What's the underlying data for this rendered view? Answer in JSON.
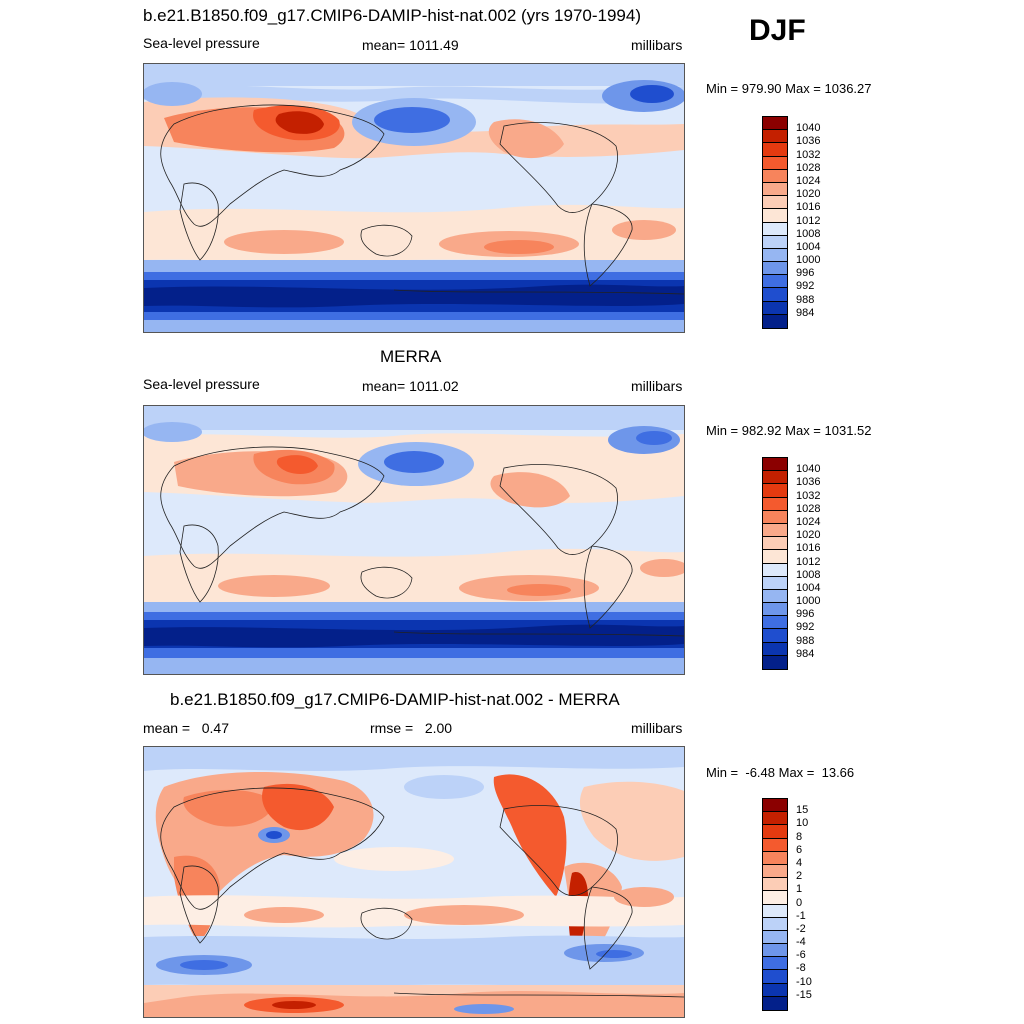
{
  "season": "DJF",
  "colors": {
    "slp": [
      "#8b0000",
      "#c42000",
      "#e43a10",
      "#f45a2e",
      "#f7845c",
      "#f9a98a",
      "#fccdb6",
      "#fde6d6",
      "#dde9fb",
      "#bcd2f8",
      "#96b6f2",
      "#6e96ea",
      "#3f6ee2",
      "#1f4ecf",
      "#0b35b0",
      "#03208a"
    ],
    "diff": [
      "#8b0000",
      "#c42000",
      "#e43a10",
      "#f45a2e",
      "#f7845c",
      "#f9a98a",
      "#fccdb6",
      "#fdeee4",
      "#dde9fb",
      "#bcd2f8",
      "#96b6f2",
      "#6e96ea",
      "#3f6ee2",
      "#1f4ecf",
      "#0b35b0",
      "#03208a"
    ]
  },
  "panels": [
    {
      "title": "b.e21.B1850.f09_g17.CMIP6-DAMIP-hist-nat.002 (yrs 1970-1994)",
      "left": "Sea-level pressure",
      "center": "mean= 1011.49",
      "right": "millibars",
      "minmax": "Min = 979.90 Max = 1036.27",
      "legend": [
        "1040",
        "1036",
        "1032",
        "1028",
        "1024",
        "1020",
        "1016",
        "1012",
        "1008",
        "1004",
        "1000",
        "996",
        "992",
        "988",
        "984"
      ]
    },
    {
      "title": "MERRA",
      "left": "Sea-level pressure",
      "center": "mean= 1011.02",
      "right": "millibars",
      "minmax": "Min = 982.92 Max = 1031.52",
      "legend": [
        "1040",
        "1036",
        "1032",
        "1028",
        "1024",
        "1020",
        "1016",
        "1012",
        "1008",
        "1004",
        "1000",
        "996",
        "992",
        "988",
        "984"
      ]
    },
    {
      "title": "b.e21.B1850.f09_g17.CMIP6-DAMIP-hist-nat.002 - MERRA",
      "left": "mean =   0.47",
      "center": "rmse =   2.00",
      "right": "millibars",
      "minmax": "Min =  -6.48 Max =  13.66",
      "legend": [
        "15",
        "10",
        "8",
        "6",
        "4",
        "2",
        "1",
        "0",
        "-1",
        "-2",
        "-4",
        "-6",
        "-8",
        "-10",
        "-15"
      ]
    }
  ]
}
